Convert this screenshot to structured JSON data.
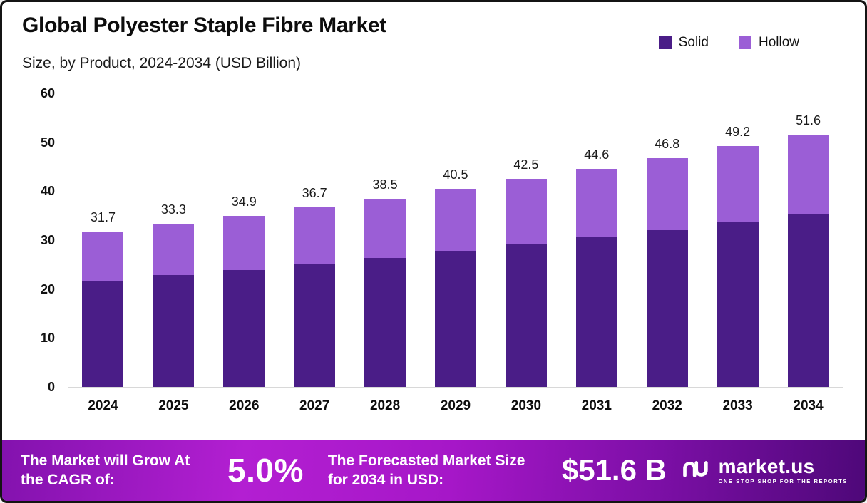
{
  "header": {
    "title": "Global Polyester Staple Fibre Market",
    "subtitle": "Size, by Product, 2024-2034 (USD Billion)"
  },
  "legend": [
    {
      "label": "Solid",
      "color": "#4a1d87"
    },
    {
      "label": "Hollow",
      "color": "#9b5ed6"
    }
  ],
  "chart_data": {
    "type": "bar",
    "stacked": true,
    "title": "Global Polyester Staple Fibre Market Size, by Product, 2024-2034 (USD Billion)",
    "categories": [
      "2024",
      "2025",
      "2026",
      "2027",
      "2028",
      "2029",
      "2030",
      "2031",
      "2032",
      "2033",
      "2034"
    ],
    "series": [
      {
        "name": "Solid",
        "color": "#4a1d87",
        "values": [
          21.7,
          22.8,
          23.9,
          25.1,
          26.4,
          27.7,
          29.1,
          30.6,
          32.1,
          33.7,
          35.3
        ]
      },
      {
        "name": "Hollow",
        "color": "#9b5ed6",
        "values": [
          10.0,
          10.5,
          11.0,
          11.6,
          12.1,
          12.8,
          13.4,
          14.0,
          14.7,
          15.5,
          16.3
        ]
      }
    ],
    "totals": [
      31.7,
      33.3,
      34.9,
      36.7,
      38.5,
      40.5,
      42.5,
      44.6,
      46.8,
      49.2,
      51.6
    ],
    "xlabel": "",
    "ylabel": "",
    "ylim": [
      0,
      60
    ],
    "yticks": [
      0,
      10,
      20,
      30,
      40,
      50,
      60
    ],
    "grid": false,
    "legend_position": "top-right"
  },
  "footer": {
    "cagr_label": "The Market will Grow At the CAGR of:",
    "cagr_value": "5.0%",
    "forecast_label": "The Forecasted Market Size for 2034 in USD:",
    "forecast_value": "$51.6 B",
    "brand": "market.us",
    "brand_tagline": "ONE STOP SHOP FOR THE REPORTS"
  }
}
